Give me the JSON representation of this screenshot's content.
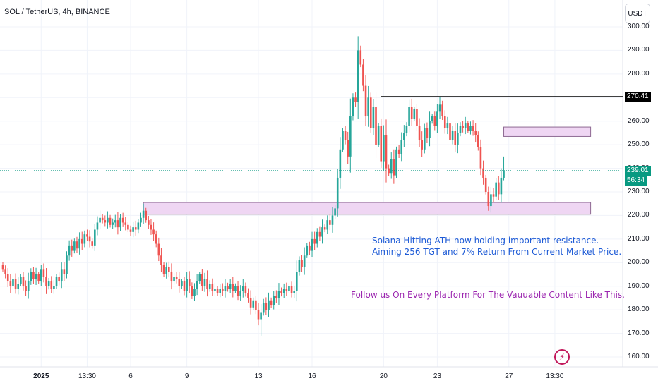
{
  "header": {
    "symbol_title": "SOL / TetherUS, 4h, BINANCE",
    "currency_label": "USDT"
  },
  "annotations": {
    "line1": "Solana Hitting ATH now holding important resistance.",
    "line2": "Aiming 256 TGT and 7% Return From Current Market Price.",
    "line3": "Follow us On Every Platform For The Vauuable Content Like This.",
    "line12_color": "#1e5bd6",
    "line3_color": "#9c27b0"
  },
  "price_tags": {
    "resistance": "270.41",
    "last_price": "239.01",
    "countdown": "56:34"
  },
  "colors": {
    "up": "#26a69a",
    "down": "#ef5350",
    "last_price": "#089981",
    "zone_fill": "#efd6f3",
    "zone_border": "#8e6a93",
    "resistance_line": "#000000"
  },
  "logo": {
    "icon": "lightning-icon"
  },
  "chart_data": {
    "type": "candlestick",
    "title": "SOL / TetherUS, 4h, BINANCE",
    "ylim": [
      155,
      305
    ],
    "y_ticks": [
      "300.00",
      "290.00",
      "280.00",
      "270.00",
      "260.00",
      "250.00",
      "240.00",
      "230.00",
      "220.00",
      "210.00",
      "200.00",
      "190.00",
      "180.00",
      "170.00",
      "160.00"
    ],
    "x_ticks": [
      {
        "label": "2025",
        "bold": true,
        "bar": 15
      },
      {
        "label": "13:30",
        "bold": false,
        "bar": 33
      },
      {
        "label": "6",
        "bold": false,
        "bar": 50
      },
      {
        "label": "9",
        "bold": false,
        "bar": 72
      },
      {
        "label": "13",
        "bold": false,
        "bar": 100
      },
      {
        "label": "16",
        "bold": false,
        "bar": 121
      },
      {
        "label": "20",
        "bold": false,
        "bar": 149
      },
      {
        "label": "23",
        "bold": false,
        "bar": 170
      },
      {
        "label": "27",
        "bold": false,
        "bar": 198
      },
      {
        "label": "13:30",
        "bold": false,
        "bar": 216
      }
    ],
    "resistance_level": 270.41,
    "last_price": 239.01,
    "zones": [
      {
        "low": 220.5,
        "high": 225.5,
        "from_bar": 55,
        "to_bar": 230
      },
      {
        "low": 253.5,
        "high": 257.5,
        "from_bar": 196,
        "to_bar": 230
      }
    ],
    "closes": [
      197,
      195,
      192,
      190,
      193,
      189,
      191,
      194,
      190,
      188,
      192,
      196,
      193,
      195,
      192,
      197,
      194,
      190,
      192,
      189,
      190,
      194,
      192,
      197,
      195,
      203,
      207,
      205,
      209,
      206,
      210,
      208,
      212,
      211,
      209,
      207,
      214,
      217,
      219,
      218,
      217,
      219,
      216,
      217,
      218,
      215,
      219,
      217,
      216,
      214,
      213,
      215,
      214,
      217,
      219,
      222,
      218,
      216,
      214,
      212,
      208,
      203,
      199,
      195,
      198,
      196,
      192,
      194,
      193,
      190,
      192,
      188,
      193,
      190,
      186,
      189,
      192,
      195,
      190,
      193,
      189,
      191,
      188,
      189,
      187,
      189,
      188,
      190,
      189,
      191,
      188,
      190,
      186,
      188,
      190,
      187,
      185,
      181,
      184,
      180,
      176,
      179,
      183,
      180,
      184,
      182,
      186,
      185,
      188,
      187,
      189,
      188,
      190,
      187,
      188,
      196,
      201,
      198,
      203,
      207,
      205,
      210,
      208,
      213,
      211,
      215,
      214,
      218,
      216,
      220,
      223,
      236,
      248,
      256,
      252,
      245,
      262,
      270,
      268,
      290,
      284,
      275,
      262,
      270,
      257,
      266,
      250,
      258,
      243,
      254,
      240,
      238,
      244,
      237,
      248,
      246,
      252,
      255,
      258,
      266,
      261,
      265,
      258,
      252,
      248,
      257,
      253,
      260,
      262,
      258,
      264,
      267,
      262,
      257,
      259,
      252,
      256,
      250,
      255,
      258,
      257,
      259,
      256,
      258,
      256,
      254,
      249,
      240,
      236,
      230,
      224,
      229,
      228,
      234,
      229,
      236,
      239.01
    ]
  }
}
